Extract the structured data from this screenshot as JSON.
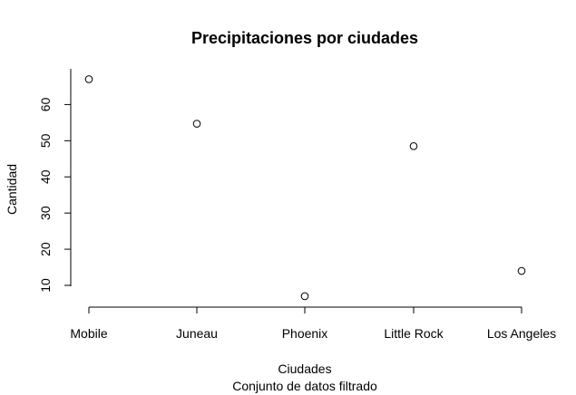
{
  "chart_data": {
    "type": "scatter",
    "title": "Precipitaciones por ciudades",
    "xlabel": "Ciudades",
    "subtitle": "Conjunto de datos filtrado",
    "ylabel": "Cantidad",
    "categories": [
      "Mobile",
      "Juneau",
      "Phoenix",
      "Little Rock",
      "Los Angeles"
    ],
    "values": [
      67.0,
      54.7,
      7.0,
      48.5,
      14.0
    ],
    "yticks": [
      10,
      20,
      30,
      40,
      50,
      60
    ],
    "ylim": [
      5.5,
      68.5
    ],
    "grid": false,
    "legend": "none"
  }
}
